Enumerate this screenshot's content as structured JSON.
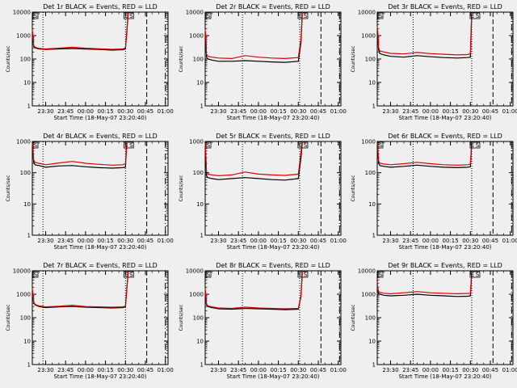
{
  "chart_data": [
    {
      "type": "line",
      "title": "Det 1r BLACK = Events, RED = LLD",
      "xlabel": "Start Time (18-May-07 23:20:40)",
      "ylabel": "Counts/sec",
      "yscale": "log",
      "ylim": [
        1,
        10000
      ],
      "y_ticks": [
        "10000",
        "1000",
        "100",
        "10",
        "1"
      ],
      "x_ticks": [
        "23:30",
        "23:45",
        "00:00",
        "00:15",
        "00:30",
        "00:45",
        "01:00"
      ],
      "x_ticks_min": [
        10,
        25,
        40,
        55,
        70,
        85,
        100
      ],
      "xlim_min": [
        0,
        102
      ],
      "annotations": {
        "start_label": "S",
        "end_labels": [
          "E",
          "S"
        ]
      },
      "markers_min": {
        "dotted": [
          8,
          70
        ],
        "dashed": [
          86
        ],
        "dashdot": [
          100
        ]
      },
      "series": [
        {
          "name": "Events",
          "color": "#000000",
          "x_min": [
            0,
            0.5,
            1,
            2,
            5,
            10,
            20,
            30,
            40,
            50,
            60,
            68,
            70,
            71,
            72
          ],
          "values": [
            1500,
            900,
            350,
            300,
            270,
            255,
            270,
            280,
            265,
            255,
            240,
            250,
            270,
            1200,
            8000
          ]
        },
        {
          "name": "LLD",
          "color": "#dd0000",
          "x_min": [
            0,
            0.5,
            1,
            2,
            5,
            10,
            20,
            30,
            40,
            50,
            60,
            68,
            70,
            71,
            72
          ],
          "values": [
            1700,
            1000,
            380,
            320,
            285,
            270,
            290,
            320,
            290,
            275,
            260,
            270,
            300,
            1500,
            9000
          ]
        }
      ]
    },
    {
      "type": "line",
      "title": "Det 2r BLACK = Events, RED = LLD",
      "xlabel": "Start Time (18-May-07 23:20:40)",
      "ylabel": "Counts/sec",
      "yscale": "log",
      "ylim": [
        1,
        10000
      ],
      "y_ticks": [
        "10000",
        "1000",
        "100",
        "10",
        "1"
      ],
      "x_ticks": [
        "23:30",
        "23:45",
        "00:00",
        "00:15",
        "00:30",
        "00:45",
        "01:00"
      ],
      "x_ticks_min": [
        10,
        25,
        40,
        55,
        70,
        85,
        100
      ],
      "xlim_min": [
        0,
        102
      ],
      "annotations": {
        "start_label": "S",
        "end_labels": [
          "E",
          "S"
        ]
      },
      "markers_min": {
        "dotted": [
          28,
          71
        ],
        "dashed": [
          87
        ],
        "dashdot": [
          101
        ]
      },
      "series": [
        {
          "name": "Events",
          "color": "#000000",
          "x_min": [
            0,
            0.5,
            1,
            2,
            5,
            10,
            20,
            30,
            40,
            50,
            60,
            70,
            72,
            73
          ],
          "values": [
            1500,
            700,
            120,
            100,
            90,
            80,
            80,
            85,
            80,
            75,
            72,
            80,
            500,
            8000
          ]
        },
        {
          "name": "LLD",
          "color": "#dd0000",
          "x_min": [
            0,
            0.5,
            1,
            2,
            5,
            10,
            20,
            30,
            40,
            50,
            60,
            70,
            72,
            73
          ],
          "values": [
            1800,
            900,
            160,
            130,
            120,
            110,
            105,
            140,
            120,
            110,
            105,
            115,
            700,
            9000
          ]
        }
      ]
    },
    {
      "type": "line",
      "title": "Det 3r BLACK = Events, RED = LLD",
      "xlabel": "Start Time (18-May-07 23:20:40)",
      "ylabel": "Counts/sec",
      "yscale": "log",
      "ylim": [
        1,
        10000
      ],
      "y_ticks": [
        "10000",
        "1000",
        "100",
        "10",
        "1"
      ],
      "x_ticks": [
        "23:30",
        "23:45",
        "00:00",
        "00:15",
        "00:30",
        "00:45",
        "01:00"
      ],
      "x_ticks_min": [
        10,
        25,
        40,
        55,
        70,
        85,
        100
      ],
      "xlim_min": [
        0,
        102
      ],
      "annotations": {
        "start_label": "S",
        "end_labels": [
          "E",
          "S"
        ]
      },
      "markers_min": {
        "dotted": [
          27,
          71
        ],
        "dashed": [
          87
        ],
        "dashdot": [
          101
        ]
      },
      "series": [
        {
          "name": "Events",
          "color": "#000000",
          "x_min": [
            0,
            0.5,
            1,
            2,
            5,
            10,
            20,
            30,
            40,
            50,
            60,
            68,
            70,
            71
          ],
          "values": [
            2000,
            1000,
            250,
            170,
            150,
            130,
            120,
            140,
            125,
            115,
            110,
            115,
            120,
            8000
          ]
        },
        {
          "name": "LLD",
          "color": "#dd0000",
          "x_min": [
            0,
            0.5,
            1,
            2,
            5,
            10,
            20,
            30,
            40,
            50,
            60,
            68,
            70,
            71
          ],
          "values": [
            2500,
            1300,
            300,
            220,
            200,
            175,
            165,
            190,
            170,
            160,
            150,
            155,
            170,
            9000
          ]
        }
      ]
    },
    {
      "type": "line",
      "title": "Det 4r BLACK = Events, RED = LLD",
      "xlabel": "Start Time (18-May-07 23:20:40)",
      "ylabel": "Counts/sec",
      "yscale": "log",
      "ylim": [
        1,
        1000
      ],
      "y_ticks": [
        "1000",
        "100",
        "10",
        "1"
      ],
      "x_ticks": [
        "23:30",
        "23:45",
        "00:00",
        "00:15",
        "00:30",
        "00:45",
        "01:00"
      ],
      "x_ticks_min": [
        10,
        25,
        40,
        55,
        70,
        85,
        100
      ],
      "xlim_min": [
        0,
        102
      ],
      "annotations": {
        "start_label": "S",
        "end_labels": [
          "E",
          "S"
        ]
      },
      "markers_min": {
        "dotted": [
          8,
          70
        ],
        "dashed": [
          86
        ],
        "dashdot": [
          100
        ]
      },
      "series": [
        {
          "name": "Events",
          "color": "#000000",
          "x_min": [
            0,
            0.5,
            1,
            2,
            5,
            10,
            20,
            30,
            40,
            50,
            60,
            68,
            70,
            71
          ],
          "values": [
            800,
            500,
            220,
            180,
            170,
            150,
            165,
            170,
            155,
            145,
            140,
            145,
            150,
            800
          ]
        },
        {
          "name": "LLD",
          "color": "#dd0000",
          "x_min": [
            0,
            0.5,
            1,
            2,
            5,
            10,
            20,
            30,
            40,
            50,
            60,
            68,
            70,
            71
          ],
          "values": [
            900,
            600,
            260,
            215,
            200,
            180,
            205,
            230,
            200,
            185,
            175,
            180,
            195,
            900
          ]
        }
      ]
    },
    {
      "type": "line",
      "title": "Det 5r BLACK = Events, RED = LLD",
      "xlabel": "Start Time (18-May-07 23:20:40)",
      "ylabel": "Counts/sec",
      "yscale": "log",
      "ylim": [
        1,
        1000
      ],
      "y_ticks": [
        "1000",
        "100",
        "10",
        "1"
      ],
      "x_ticks": [
        "23:30",
        "23:45",
        "00:00",
        "00:15",
        "00:30",
        "00:45",
        "01:00"
      ],
      "x_ticks_min": [
        10,
        25,
        40,
        55,
        70,
        85,
        100
      ],
      "xlim_min": [
        0,
        102
      ],
      "annotations": {
        "start_label": "S",
        "end_labels": [
          "E",
          "S"
        ]
      },
      "markers_min": {
        "dotted": [
          28,
          71
        ],
        "dashed": [
          87
        ],
        "dashdot": [
          101
        ]
      },
      "series": [
        {
          "name": "Events",
          "color": "#000000",
          "x_min": [
            0,
            0.5,
            1,
            2,
            5,
            10,
            20,
            30,
            40,
            50,
            60,
            70,
            72,
            73
          ],
          "values": [
            700,
            300,
            80,
            70,
            65,
            60,
            65,
            70,
            65,
            60,
            58,
            65,
            300,
            900
          ]
        },
        {
          "name": "LLD",
          "color": "#dd0000",
          "x_min": [
            0,
            0.5,
            1,
            2,
            5,
            10,
            20,
            30,
            40,
            50,
            60,
            70,
            72,
            73
          ],
          "values": [
            900,
            400,
            110,
            90,
            85,
            80,
            85,
            105,
            90,
            85,
            82,
            90,
            450,
            950
          ]
        }
      ]
    },
    {
      "type": "line",
      "title": "Det 6r BLACK = Events, RED = LLD",
      "xlabel": "Start Time (18-May-07 23:20:40)",
      "ylabel": "Counts/sec",
      "yscale": "log",
      "ylim": [
        1,
        1000
      ],
      "y_ticks": [
        "1000",
        "100",
        "10",
        "1"
      ],
      "x_ticks": [
        "23:30",
        "23:45",
        "00:00",
        "00:15",
        "00:30",
        "00:45",
        "01:00"
      ],
      "x_ticks_min": [
        10,
        25,
        40,
        55,
        70,
        85,
        100
      ],
      "xlim_min": [
        0,
        102
      ],
      "annotations": {
        "start_label": "S",
        "end_labels": [
          "E",
          "S"
        ]
      },
      "markers_min": {
        "dotted": [
          27,
          71
        ],
        "dashed": [
          87
        ],
        "dashdot": [
          101
        ]
      },
      "series": [
        {
          "name": "Events",
          "color": "#000000",
          "x_min": [
            0,
            0.5,
            1,
            2,
            5,
            10,
            20,
            30,
            40,
            50,
            60,
            68,
            70,
            71
          ],
          "values": [
            800,
            500,
            200,
            170,
            160,
            150,
            160,
            175,
            160,
            150,
            145,
            150,
            155,
            900
          ]
        },
        {
          "name": "LLD",
          "color": "#dd0000",
          "x_min": [
            0,
            0.5,
            1,
            2,
            5,
            10,
            20,
            30,
            40,
            50,
            60,
            68,
            70,
            71
          ],
          "values": [
            900,
            600,
            240,
            200,
            190,
            180,
            195,
            215,
            195,
            180,
            175,
            180,
            190,
            950
          ]
        }
      ]
    },
    {
      "type": "line",
      "title": "Det 7r BLACK = Events, RED = LLD",
      "xlabel": "Start Time (18-May-07 23:20:40)",
      "ylabel": "Counts/sec",
      "yscale": "log",
      "ylim": [
        1,
        10000
      ],
      "y_ticks": [
        "10000",
        "1000",
        "100",
        "10",
        "1"
      ],
      "x_ticks": [
        "23:30",
        "23:45",
        "00:00",
        "00:15",
        "00:30",
        "00:45",
        "01:00"
      ],
      "x_ticks_min": [
        10,
        25,
        40,
        55,
        70,
        85,
        100
      ],
      "xlim_min": [
        0,
        102
      ],
      "annotations": {
        "start_label": "S",
        "end_labels": [
          "E",
          "S"
        ]
      },
      "markers_min": {
        "dotted": [
          8,
          70
        ],
        "dashed": [
          86
        ],
        "dashdot": [
          100
        ]
      },
      "series": [
        {
          "name": "Events",
          "color": "#000000",
          "x_min": [
            0,
            0.5,
            1,
            2,
            5,
            10,
            20,
            30,
            40,
            50,
            60,
            68,
            70,
            71,
            72
          ],
          "values": [
            1500,
            900,
            450,
            350,
            300,
            270,
            290,
            300,
            280,
            270,
            260,
            270,
            290,
            1500,
            8000
          ]
        },
        {
          "name": "LLD",
          "color": "#dd0000",
          "x_min": [
            0,
            0.5,
            1,
            2,
            5,
            10,
            20,
            30,
            40,
            50,
            60,
            68,
            70,
            71,
            72
          ],
          "values": [
            1700,
            1000,
            480,
            370,
            320,
            290,
            310,
            340,
            300,
            290,
            280,
            290,
            310,
            1700,
            9000
          ]
        }
      ]
    },
    {
      "type": "line",
      "title": "Det 8r BLACK = Events, RED = LLD",
      "xlabel": "Start Time (18-May-07 23:20:40)",
      "ylabel": "Counts/sec",
      "yscale": "log",
      "ylim": [
        1,
        10000
      ],
      "y_ticks": [
        "10000",
        "1000",
        "100",
        "10",
        "1"
      ],
      "x_ticks": [
        "23:30",
        "23:45",
        "00:00",
        "00:15",
        "00:30",
        "00:45",
        "01:00"
      ],
      "x_ticks_min": [
        10,
        25,
        40,
        55,
        70,
        85,
        100
      ],
      "xlim_min": [
        0,
        102
      ],
      "annotations": {
        "start_label": "S",
        "end_labels": [
          "E",
          "S"
        ]
      },
      "markers_min": {
        "dotted": [
          28,
          71
        ],
        "dashed": [
          87
        ],
        "dashdot": [
          101
        ]
      },
      "series": [
        {
          "name": "Events",
          "color": "#000000",
          "x_min": [
            0,
            0.5,
            1,
            2,
            5,
            10,
            20,
            30,
            40,
            50,
            60,
            70,
            72,
            73
          ],
          "values": [
            1500,
            800,
            350,
            300,
            270,
            240,
            230,
            250,
            240,
            230,
            220,
            230,
            800,
            8000
          ]
        },
        {
          "name": "LLD",
          "color": "#dd0000",
          "x_min": [
            0,
            0.5,
            1,
            2,
            5,
            10,
            20,
            30,
            40,
            50,
            60,
            70,
            72,
            73
          ],
          "values": [
            1700,
            900,
            380,
            320,
            290,
            260,
            250,
            280,
            260,
            250,
            240,
            250,
            900,
            9000
          ]
        }
      ]
    },
    {
      "type": "line",
      "title": "Det 9r BLACK = Events, RED = LLD",
      "xlabel": "Start Time (18-May-07 23:20:40)",
      "ylabel": "Counts/sec",
      "yscale": "log",
      "ylim": [
        1,
        10000
      ],
      "y_ticks": [
        "10000",
        "1000",
        "100",
        "10",
        "1"
      ],
      "x_ticks": [
        "23:30",
        "23:45",
        "00:00",
        "00:15",
        "00:30",
        "00:45",
        "01:00"
      ],
      "x_ticks_min": [
        10,
        25,
        40,
        55,
        70,
        85,
        100
      ],
      "xlim_min": [
        0,
        102
      ],
      "annotations": {
        "start_label": "S",
        "end_labels": [
          "E",
          "S"
        ]
      },
      "markers_min": {
        "dotted": [
          27,
          71
        ],
        "dashed": [
          87
        ],
        "dashdot": [
          101
        ]
      },
      "series": [
        {
          "name": "Events",
          "color": "#000000",
          "x_min": [
            0,
            0.5,
            1,
            2,
            5,
            10,
            20,
            30,
            40,
            50,
            60,
            68,
            70,
            71
          ],
          "values": [
            3000,
            1500,
            1100,
            1000,
            900,
            850,
            900,
            1000,
            900,
            850,
            800,
            820,
            850,
            8000
          ]
        },
        {
          "name": "LLD",
          "color": "#dd0000",
          "x_min": [
            0,
            0.5,
            1,
            2,
            5,
            10,
            20,
            30,
            40,
            50,
            60,
            68,
            70,
            71
          ],
          "values": [
            3500,
            1700,
            1300,
            1200,
            1100,
            1050,
            1150,
            1300,
            1150,
            1100,
            1050,
            1080,
            1100,
            9000
          ]
        }
      ]
    }
  ]
}
